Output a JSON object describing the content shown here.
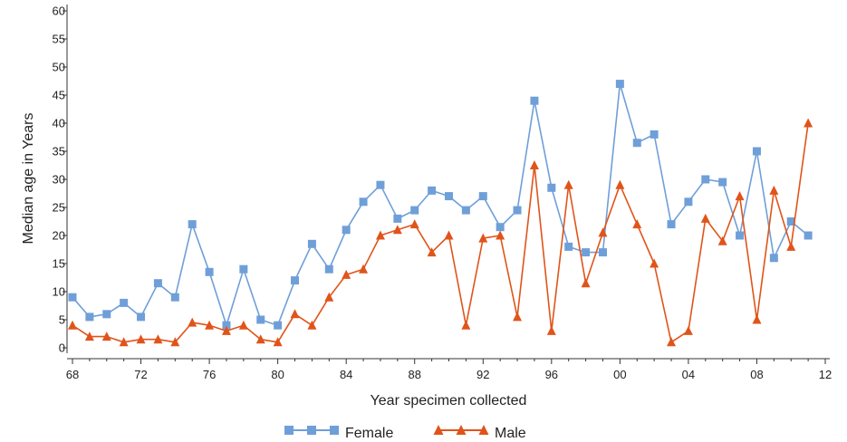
{
  "chart_data": {
    "type": "line",
    "title": "",
    "xlabel": "Year specimen collected",
    "ylabel": "Median age in Years",
    "xlim": [
      1968,
      2012
    ],
    "ylim": [
      0,
      60
    ],
    "x_ticks": [
      1968,
      1972,
      1976,
      1980,
      1984,
      1988,
      1992,
      1996,
      2000,
      2004,
      2008,
      2012
    ],
    "x_tick_labels": [
      "68",
      "72",
      "76",
      "80",
      "84",
      "88",
      "92",
      "96",
      "00",
      "04",
      "08",
      "12"
    ],
    "y_ticks": [
      0,
      5,
      10,
      15,
      20,
      25,
      30,
      35,
      40,
      45,
      50,
      55,
      60
    ],
    "y_tick_labels": [
      "0",
      "5",
      "10",
      "15",
      "20",
      "25",
      "30",
      "35",
      "40",
      "45",
      "50",
      "55",
      "60"
    ],
    "grid": false,
    "legend_position": "bottom-center",
    "x": [
      1968,
      1969,
      1970,
      1971,
      1972,
      1973,
      1974,
      1975,
      1976,
      1977,
      1978,
      1979,
      1980,
      1981,
      1982,
      1983,
      1984,
      1985,
      1986,
      1987,
      1988,
      1989,
      1990,
      1991,
      1992,
      1993,
      1994,
      1995,
      1996,
      1997,
      1998,
      1999,
      2000,
      2001,
      2002,
      2003,
      2004,
      2005,
      2006,
      2007,
      2008,
      2009,
      2010,
      2011
    ],
    "series": [
      {
        "name": "Female",
        "color": "#6f9fd8",
        "marker": "square",
        "values": [
          9,
          5.5,
          6,
          8,
          5.5,
          11.5,
          9,
          22,
          13.5,
          4,
          14,
          5,
          4,
          12,
          18.5,
          14,
          21,
          26,
          29,
          23,
          24.5,
          28,
          27,
          24.5,
          27,
          21.5,
          24.5,
          44,
          28.5,
          18,
          17,
          17,
          47,
          36.5,
          38,
          22,
          26,
          30,
          29.5,
          20,
          35,
          16,
          22.5,
          20
        ]
      },
      {
        "name": "Male",
        "color": "#e0541a",
        "marker": "triangle",
        "values": [
          4,
          2,
          2,
          1,
          1.5,
          1.5,
          1,
          4.5,
          4,
          3,
          4,
          1.5,
          1,
          6,
          4,
          9,
          13,
          14,
          20,
          21,
          22,
          17,
          20,
          4,
          19.5,
          20,
          5.5,
          32.5,
          3,
          29,
          11.5,
          20.5,
          29,
          22,
          15,
          1,
          3,
          23,
          19,
          27,
          5,
          28,
          18,
          40
        ]
      }
    ]
  }
}
